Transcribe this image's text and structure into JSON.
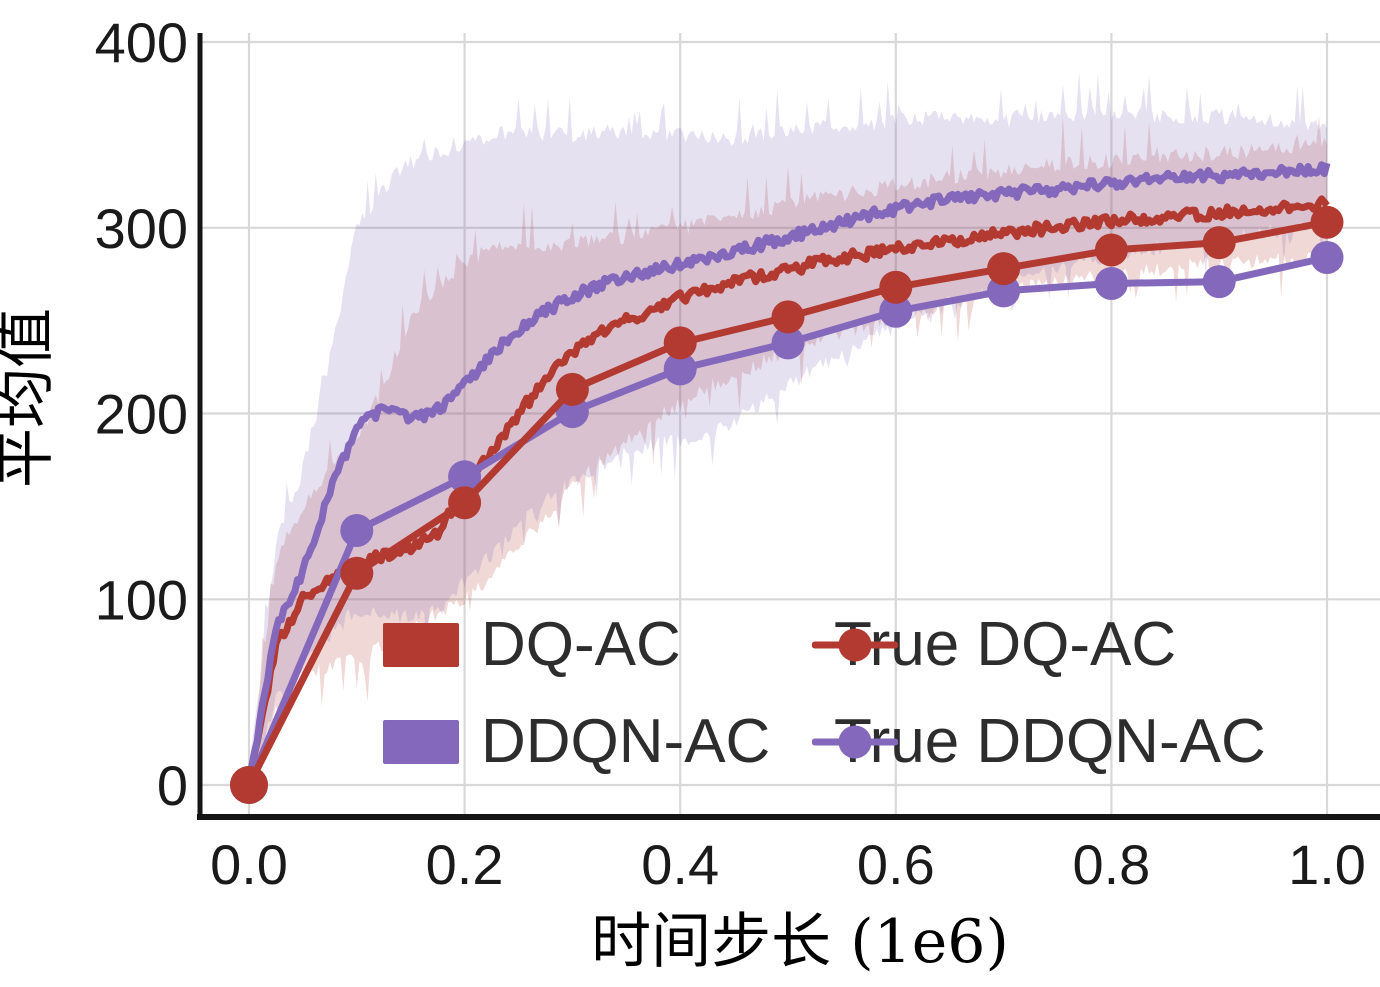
{
  "chart_data": {
    "type": "line",
    "title": "",
    "xlabel": "时间步长 (1e6)",
    "ylabel": "平均值",
    "xlim": [
      0,
      1.0
    ],
    "ylim": [
      0,
      400
    ],
    "grid": true,
    "legend_position": "lower-right-inside, 2 columns, frameless",
    "xticks": [
      0.0,
      0.2,
      0.4,
      0.6,
      0.8,
      1.0
    ],
    "xtick_labels": [
      "0.0",
      "0.2",
      "0.4",
      "0.6",
      "0.8",
      "1.0"
    ],
    "yticks": [
      0,
      100,
      200,
      300,
      400
    ],
    "ytick_labels": [
      "0",
      "100",
      "200",
      "300",
      "400"
    ],
    "colors": {
      "red": "#b23a30",
      "purple": "#8468bb",
      "band_red": "rgba(178,58,48,0.20)",
      "band_purple": "rgba(132,104,187,0.20)",
      "grid": "#d8d8d8",
      "spine": "#141414",
      "tick_text": "#1a1a1a",
      "label_text": "#000000"
    },
    "x_control": [
      0,
      0.025,
      0.05,
      0.075,
      0.1,
      0.125,
      0.15,
      0.175,
      0.2,
      0.225,
      0.25,
      0.275,
      0.3,
      0.325,
      0.35,
      0.375,
      0.4,
      0.425,
      0.45,
      0.475,
      0.5,
      0.525,
      0.55,
      0.575,
      0.6,
      0.625,
      0.65,
      0.675,
      0.7,
      0.725,
      0.75,
      0.775,
      0.8,
      0.825,
      0.85,
      0.875,
      0.9,
      0.925,
      0.95,
      0.975,
      1.0
    ],
    "series": [
      {
        "name": "DQ-AC",
        "style": "noisy-line-with-band",
        "color_key": "red",
        "mean": [
          0,
          75,
          100,
          110,
          118,
          124,
          127,
          136,
          158,
          180,
          200,
          218,
          233,
          243,
          250,
          256,
          262,
          267,
          271,
          274,
          277,
          281,
          284,
          286,
          289,
          291,
          293,
          295,
          297,
          299,
          300,
          302,
          304,
          305,
          306,
          307,
          308,
          309,
          310,
          311,
          313
        ],
        "band_upper": [
          5,
          120,
          150,
          170,
          185,
          215,
          252,
          268,
          282,
          288,
          290,
          291,
          292,
          293,
          295,
          297,
          300,
          303,
          306,
          309,
          313,
          316,
          318,
          320,
          323,
          325,
          327,
          329,
          331,
          332,
          334,
          335,
          336,
          337,
          338,
          339,
          340,
          341,
          342,
          343,
          345
        ],
        "band_lower": [
          -5,
          40,
          58,
          64,
          68,
          75,
          84,
          92,
          100,
          113,
          128,
          145,
          160,
          173,
          185,
          196,
          206,
          214,
          221,
          227,
          233,
          239,
          244,
          248,
          252,
          256,
          259,
          262,
          265,
          268,
          270,
          273,
          275,
          277,
          278,
          280,
          281,
          282,
          283,
          284,
          285
        ]
      },
      {
        "name": "DDQN-AC",
        "style": "noisy-line-with-band",
        "color_key": "purple",
        "mean": [
          0,
          85,
          115,
          158,
          192,
          203,
          197,
          202,
          215,
          232,
          245,
          255,
          263,
          269,
          274,
          277,
          280,
          283,
          287,
          291,
          295,
          299,
          303,
          307,
          310,
          313,
          315,
          317,
          318,
          320,
          321,
          323,
          324,
          326,
          327,
          328,
          328,
          329,
          330,
          331,
          332
        ],
        "band_upper": [
          5,
          130,
          170,
          230,
          300,
          322,
          335,
          340,
          345,
          350,
          352,
          351,
          350,
          351,
          352,
          351,
          350,
          349,
          348,
          350,
          352,
          354,
          355,
          356,
          358,
          359,
          360,
          359,
          358,
          359,
          360,
          361,
          362,
          361,
          360,
          360,
          360,
          359,
          358,
          356,
          355
        ],
        "band_lower": [
          -5,
          45,
          65,
          80,
          95,
          92,
          90,
          95,
          110,
          125,
          140,
          153,
          163,
          172,
          179,
          183,
          186,
          190,
          196,
          205,
          215,
          224,
          232,
          240,
          248,
          254,
          259,
          264,
          269,
          274,
          278,
          282,
          285,
          288,
          290,
          293,
          295,
          297,
          298,
          299,
          300
        ]
      },
      {
        "name": "True DQ-AC",
        "style": "line-with-markers",
        "color_key": "red",
        "x": [
          0,
          0.1,
          0.2,
          0.3,
          0.4,
          0.5,
          0.6,
          0.7,
          0.8,
          0.9,
          1.0
        ],
        "y": [
          0,
          114,
          152,
          213,
          238,
          252,
          268,
          278,
          288,
          292,
          303
        ]
      },
      {
        "name": "True DDQN-AC",
        "style": "line-with-markers",
        "color_key": "purple",
        "x": [
          0,
          0.1,
          0.2,
          0.3,
          0.4,
          0.5,
          0.6,
          0.7,
          0.8,
          0.9,
          1.0
        ],
        "y": [
          0,
          137,
          166,
          201,
          224,
          238,
          255,
          266,
          270,
          271,
          284
        ]
      }
    ],
    "legend": {
      "items": [
        {
          "label": "DQ-AC",
          "swatch": "patch",
          "color_key": "red"
        },
        {
          "label": "True DQ-AC",
          "swatch": "marker-line",
          "color_key": "red"
        },
        {
          "label": "DDQN-AC",
          "swatch": "patch",
          "color_key": "purple"
        },
        {
          "label": "True DDQN-AC",
          "swatch": "marker-line",
          "color_key": "purple"
        }
      ]
    }
  }
}
